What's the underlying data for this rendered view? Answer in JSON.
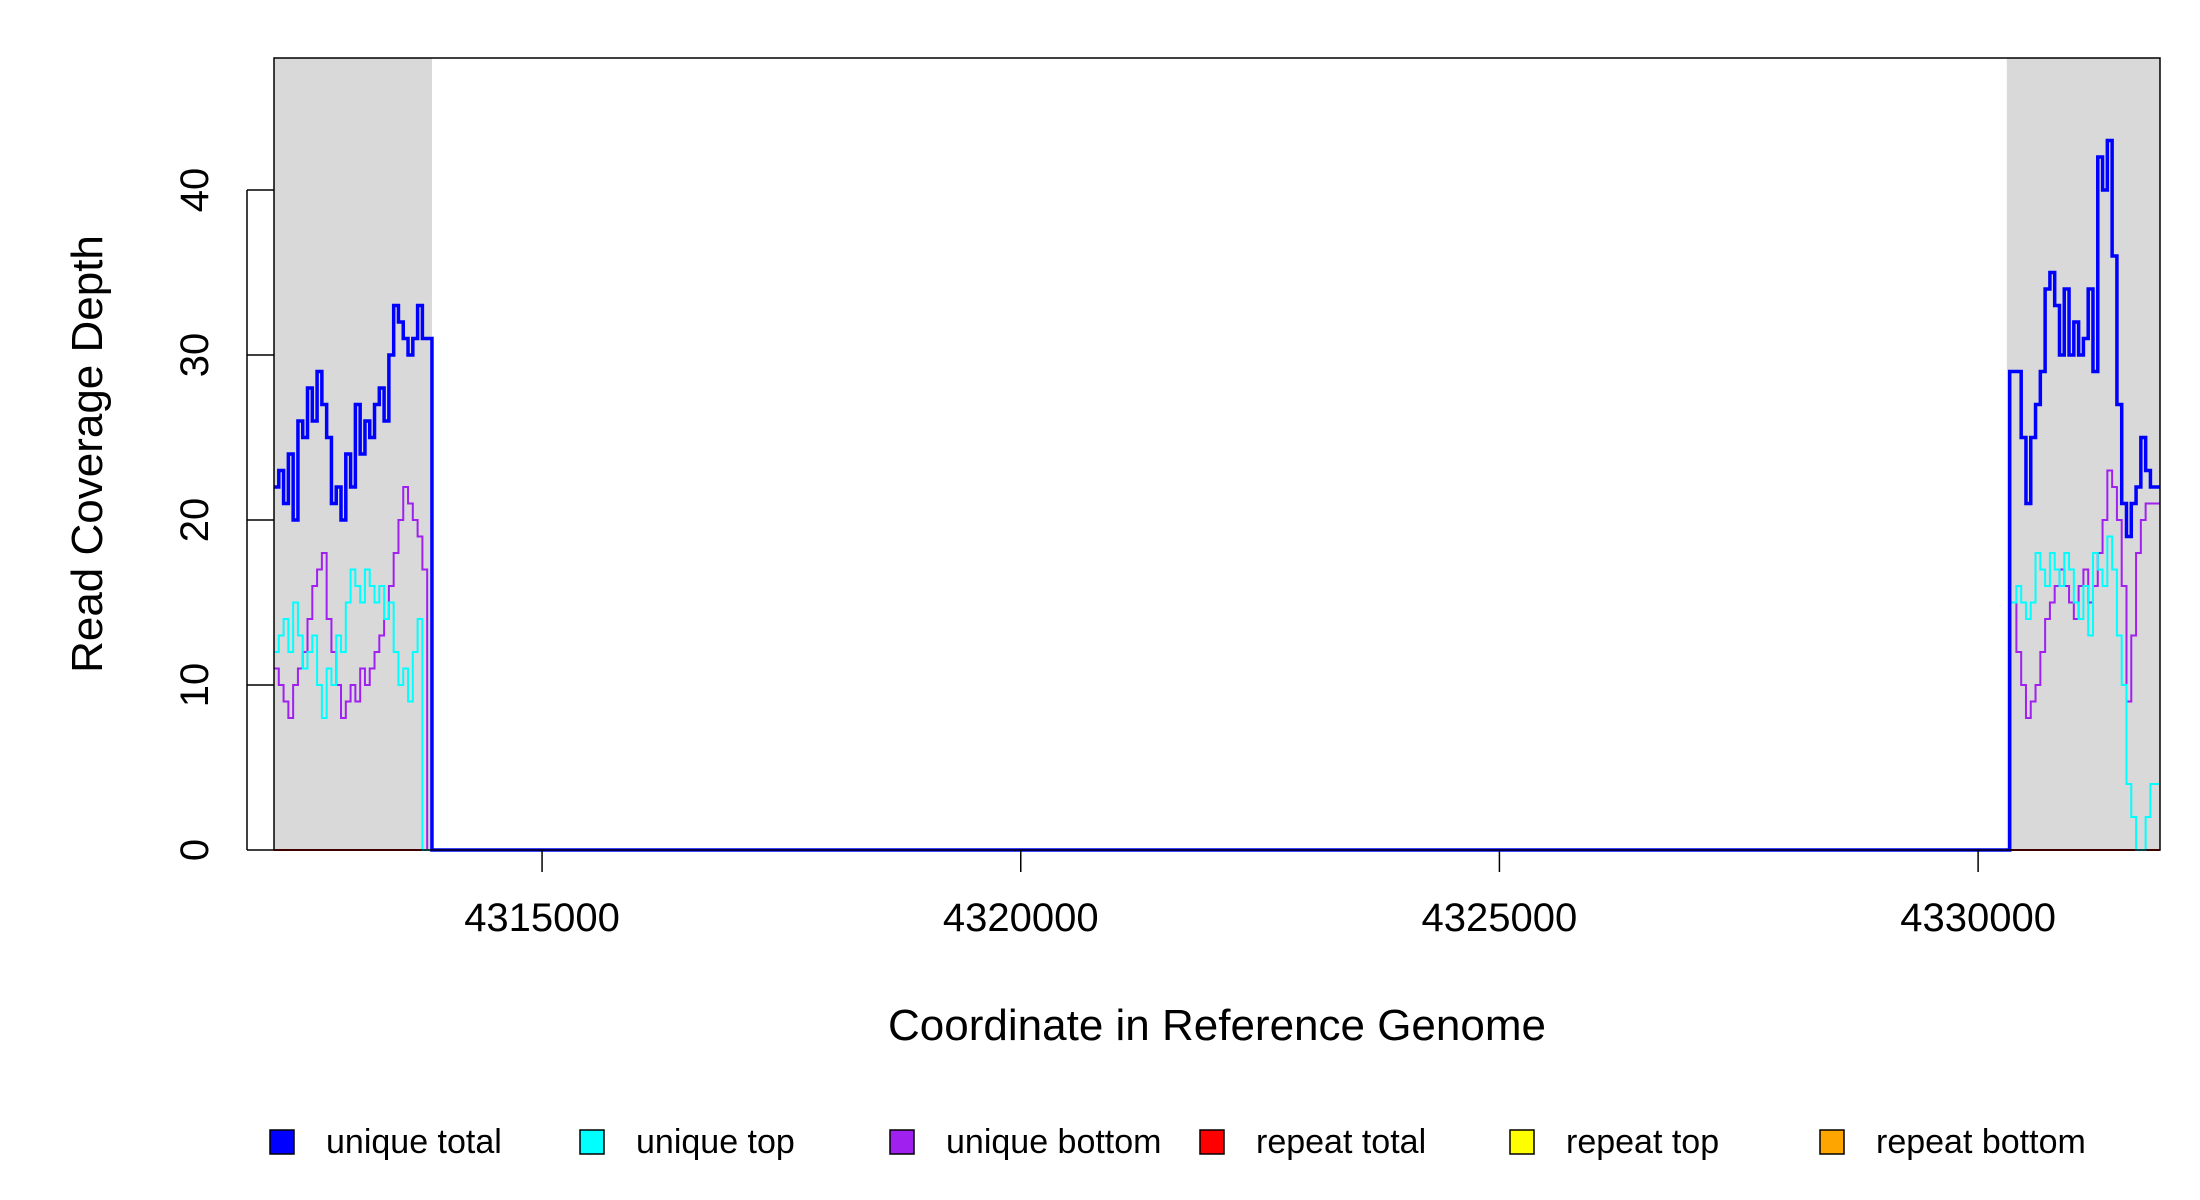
{
  "chart_data": {
    "type": "line",
    "title": "",
    "xlabel": "Coordinate in Reference Genome",
    "ylabel": "Read Coverage Depth",
    "xlim": [
      4312200,
      4331900
    ],
    "ylim": [
      0,
      48
    ],
    "x_ticks": [
      4315000,
      4320000,
      4325000,
      4330000
    ],
    "x_tick_labels": [
      "4315000",
      "4320000",
      "4325000",
      "4330000"
    ],
    "y_ticks": [
      0,
      10,
      20,
      30,
      40
    ],
    "y_tick_labels": [
      "0",
      "10",
      "20",
      "30",
      "40"
    ],
    "shaded_regions": [
      [
        4312200,
        4313850
      ],
      [
        4330300,
        4331900
      ]
    ],
    "grid": false,
    "legend_position": "bottom",
    "series": [
      {
        "name": "unique total",
        "color": "#0000ff",
        "x": [
          4312200,
          4312250,
          4312300,
          4312350,
          4312400,
          4312450,
          4312500,
          4312550,
          4312600,
          4312650,
          4312700,
          4312750,
          4312800,
          4312850,
          4312900,
          4312950,
          4313000,
          4313050,
          4313100,
          4313150,
          4313200,
          4313250,
          4313300,
          4313350,
          4313400,
          4313450,
          4313500,
          4313550,
          4313600,
          4313650,
          4313700,
          4313750,
          4313800,
          4313850,
          4313870,
          4330300,
          4330330,
          4330400,
          4330450,
          4330500,
          4330550,
          4330600,
          4330650,
          4330700,
          4330750,
          4330800,
          4330850,
          4330900,
          4330950,
          4331000,
          4331050,
          4331100,
          4331150,
          4331200,
          4331250,
          4331300,
          4331350,
          4331400,
          4331450,
          4331500,
          4331550,
          4331600,
          4331650,
          4331700,
          4331750,
          4331800,
          4331850,
          4331900
        ],
        "values": [
          22,
          23,
          21,
          24,
          20,
          26,
          25,
          28,
          26,
          29,
          27,
          25,
          21,
          22,
          20,
          24,
          22,
          27,
          24,
          26,
          25,
          27,
          28,
          26,
          30,
          33,
          32,
          31,
          30,
          31,
          33,
          31,
          31,
          0,
          0,
          0,
          29,
          29,
          25,
          21,
          25,
          27,
          29,
          34,
          35,
          33,
          30,
          34,
          30,
          32,
          30,
          31,
          34,
          29,
          42,
          40,
          43,
          36,
          27,
          21,
          19,
          21,
          22,
          25,
          23,
          22,
          22,
          22
        ]
      },
      {
        "name": "unique top",
        "color": "#00ffff",
        "x": [
          4312200,
          4312250,
          4312300,
          4312350,
          4312400,
          4312450,
          4312500,
          4312550,
          4312600,
          4312650,
          4312700,
          4312750,
          4312800,
          4312850,
          4312900,
          4312950,
          4313000,
          4313050,
          4313100,
          4313150,
          4313200,
          4313250,
          4313300,
          4313350,
          4313400,
          4313450,
          4313500,
          4313550,
          4313600,
          4313650,
          4313700,
          4313750,
          4313800,
          4313850,
          4313870,
          4330300,
          4330330,
          4330400,
          4330450,
          4330500,
          4330550,
          4330600,
          4330650,
          4330700,
          4330750,
          4330800,
          4330850,
          4330900,
          4330950,
          4331000,
          4331050,
          4331100,
          4331150,
          4331200,
          4331250,
          4331300,
          4331350,
          4331400,
          4331450,
          4331500,
          4331550,
          4331600,
          4331650,
          4331700,
          4331750,
          4331800,
          4331850,
          4331900
        ],
        "values": [
          12,
          13,
          14,
          12,
          15,
          13,
          11,
          12,
          13,
          10,
          8,
          11,
          10,
          13,
          12,
          15,
          17,
          16,
          15,
          17,
          16,
          15,
          16,
          14,
          15,
          12,
          10,
          11,
          9,
          12,
          14,
          0,
          0,
          0,
          0,
          0,
          15,
          16,
          15,
          14,
          15,
          18,
          17,
          16,
          18,
          17,
          16,
          18,
          17,
          15,
          14,
          16,
          13,
          18,
          17,
          16,
          19,
          17,
          13,
          10,
          4,
          2,
          0,
          0,
          2,
          4,
          4,
          4
        ]
      },
      {
        "name": "unique bottom",
        "color": "#a020f0",
        "x": [
          4312200,
          4312250,
          4312300,
          4312350,
          4312400,
          4312450,
          4312500,
          4312550,
          4312600,
          4312650,
          4312700,
          4312750,
          4312800,
          4312850,
          4312900,
          4312950,
          4313000,
          4313050,
          4313100,
          4313150,
          4313200,
          4313250,
          4313300,
          4313350,
          4313400,
          4313450,
          4313500,
          4313550,
          4313600,
          4313650,
          4313700,
          4313750,
          4313800,
          4313850,
          4313870,
          4330300,
          4330330,
          4330400,
          4330450,
          4330500,
          4330550,
          4330600,
          4330650,
          4330700,
          4330750,
          4330800,
          4330850,
          4330900,
          4330950,
          4331000,
          4331050,
          4331100,
          4331150,
          4331200,
          4331250,
          4331300,
          4331350,
          4331400,
          4331450,
          4331500,
          4331550,
          4331600,
          4331650,
          4331700,
          4331750,
          4331800,
          4331850,
          4331900
        ],
        "values": [
          11,
          10,
          9,
          8,
          10,
          11,
          12,
          14,
          16,
          17,
          18,
          14,
          12,
          10,
          8,
          9,
          10,
          9,
          11,
          10,
          11,
          12,
          13,
          14,
          16,
          18,
          20,
          22,
          21,
          20,
          19,
          17,
          0,
          0,
          0,
          0,
          15,
          12,
          10,
          8,
          9,
          10,
          12,
          14,
          15,
          16,
          17,
          16,
          15,
          14,
          16,
          17,
          15,
          16,
          18,
          20,
          23,
          22,
          20,
          16,
          9,
          13,
          18,
          20,
          21,
          21,
          21,
          21
        ]
      },
      {
        "name": "repeat total",
        "color": "#ff0000",
        "x": [
          4312200,
          4331900
        ],
        "values": [
          0,
          0
        ]
      },
      {
        "name": "repeat top",
        "color": "#ffff00",
        "x": [
          4312200,
          4331900
        ],
        "values": [
          0,
          0
        ]
      },
      {
        "name": "repeat bottom",
        "color": "#ffa500",
        "x": [
          4312200,
          4331900
        ],
        "values": [
          0,
          0
        ]
      }
    ]
  }
}
